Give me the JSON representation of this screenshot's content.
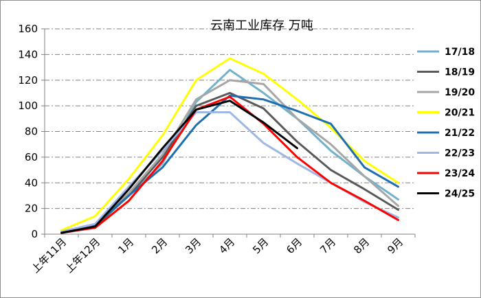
{
  "chart_data": {
    "type": "line",
    "title": "云南工业库存  万吨",
    "xlabel": "",
    "ylabel": "",
    "ylim": [
      0,
      160
    ],
    "yticks": [
      0,
      20,
      40,
      60,
      80,
      100,
      120,
      140,
      160
    ],
    "grid": true,
    "legend_position": "right",
    "categories": [
      "上年11月",
      "上年12月",
      "1月",
      "2月",
      "3月",
      "4月",
      "5月",
      "6月",
      "7月",
      "8月",
      "9月"
    ],
    "series": [
      {
        "name": "17/18",
        "color": "#70b2cc",
        "values": [
          2,
          8,
          30,
          55,
          103,
          128,
          110,
          90,
          65,
          45,
          27
        ]
      },
      {
        "name": "18/19",
        "color": "#595959",
        "values": [
          1,
          6,
          30,
          60,
          100,
          110,
          98,
          72,
          50,
          35,
          19
        ]
      },
      {
        "name": "19/20",
        "color": "#a6a6a6",
        "values": [
          1,
          7,
          32,
          62,
          105,
          120,
          117,
          90,
          70,
          45,
          22
        ]
      },
      {
        "name": "20/21",
        "color": "#ffff00",
        "values": [
          3,
          14,
          43,
          77,
          120,
          137,
          125,
          105,
          83,
          57,
          40
        ]
      },
      {
        "name": "21/22",
        "color": "#1f6fb0",
        "values": [
          1,
          7,
          30,
          52,
          85,
          108,
          105,
          96,
          86,
          52,
          37
        ]
      },
      {
        "name": "22/23",
        "color": "#9fb7e3",
        "values": [
          2,
          8,
          37,
          65,
          95,
          95,
          71,
          55,
          40,
          25,
          13
        ]
      },
      {
        "name": "23/24",
        "color": "#ff0000",
        "values": [
          1,
          5,
          26,
          57,
          97,
          107,
          86,
          60,
          40,
          26,
          11
        ]
      },
      {
        "name": "24/25",
        "color": "#000000",
        "values": [
          1,
          6,
          35,
          67,
          97,
          104,
          87,
          67,
          null,
          null,
          null
        ]
      }
    ]
  }
}
